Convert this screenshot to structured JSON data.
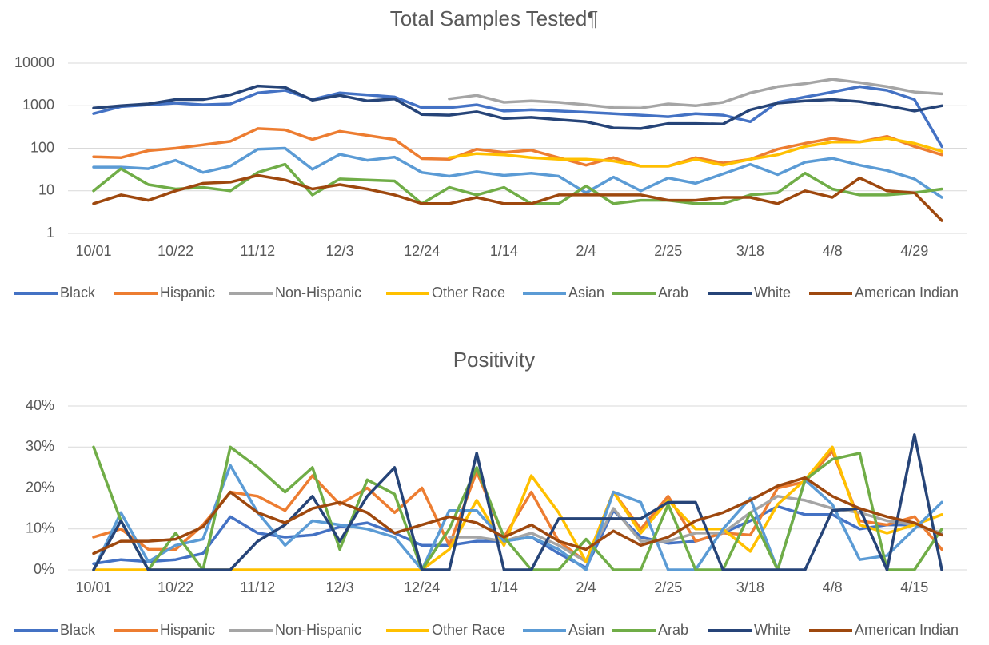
{
  "chart_data": [
    {
      "type": "line",
      "title": "Total Samples Tested¶",
      "log": true,
      "grid": true,
      "legend": "bottom",
      "categories": [
        "10/01",
        null,
        null,
        "10/22",
        null,
        null,
        "11/12",
        null,
        null,
        "12/3",
        null,
        null,
        "12/24",
        null,
        null,
        "1/14",
        null,
        null,
        "2/4",
        null,
        null,
        "2/25",
        null,
        null,
        "3/18",
        null,
        null,
        "4/8",
        null,
        null,
        "4/29",
        null
      ],
      "ylim": [
        1,
        10000
      ],
      "yticks": [
        1,
        10,
        100,
        1000,
        10000
      ],
      "series": [
        {
          "name": "Black",
          "color": "#4472c4",
          "values": [
            650,
            950,
            1050,
            1150,
            1050,
            1100,
            2000,
            2300,
            1400,
            2000,
            1800,
            1600,
            900,
            900,
            1050,
            750,
            800,
            750,
            700,
            650,
            600,
            550,
            650,
            600,
            420,
            1200,
            1600,
            2100,
            2800,
            2300,
            1400,
            110
          ]
        },
        {
          "name": "Hispanic",
          "color": "#ed7d31",
          "values": [
            63,
            60,
            88,
            100,
            120,
            145,
            290,
            270,
            160,
            250,
            200,
            160,
            57,
            55,
            95,
            80,
            90,
            60,
            40,
            60,
            38,
            38,
            60,
            45,
            55,
            95,
            130,
            170,
            140,
            190,
            110,
            70
          ]
        },
        {
          "name": "Non-Hispanic",
          "color": "#a5a5a5",
          "values": [
            null,
            null,
            null,
            null,
            null,
            null,
            null,
            null,
            null,
            null,
            null,
            null,
            null,
            1450,
            1750,
            1200,
            1300,
            1200,
            1050,
            900,
            880,
            1100,
            1000,
            1200,
            2000,
            2800,
            3300,
            4200,
            3500,
            2800,
            2100,
            1900
          ]
        },
        {
          "name": "Other Race",
          "color": "#ffc000",
          "values": [
            null,
            null,
            null,
            null,
            null,
            null,
            null,
            null,
            null,
            null,
            null,
            null,
            null,
            60,
            75,
            70,
            60,
            55,
            55,
            50,
            38,
            38,
            55,
            40,
            55,
            70,
            110,
            140,
            140,
            170,
            130,
            85
          ]
        },
        {
          "name": "Asian",
          "color": "#5b9bd5",
          "values": [
            36,
            36,
            33,
            52,
            27,
            38,
            95,
            100,
            32,
            72,
            52,
            62,
            27,
            22,
            28,
            23,
            26,
            22,
            9,
            21,
            10,
            20,
            15,
            25,
            42,
            24,
            47,
            58,
            40,
            30,
            19,
            7
          ]
        },
        {
          "name": "Arab",
          "color": "#70ad47",
          "values": [
            10,
            33,
            14,
            11,
            12,
            10,
            27,
            42,
            8,
            19,
            18,
            17,
            5,
            12,
            8,
            12,
            5,
            5,
            13,
            5,
            6,
            6,
            5,
            5,
            8,
            9,
            26,
            11,
            8,
            8,
            9,
            11
          ]
        },
        {
          "name": "White",
          "color": "#264478",
          "values": [
            880,
            1000,
            1100,
            1400,
            1400,
            1800,
            2900,
            2700,
            1350,
            1750,
            1300,
            1450,
            620,
            600,
            720,
            500,
            530,
            470,
            420,
            300,
            290,
            380,
            380,
            370,
            800,
            1150,
            1300,
            1400,
            1250,
            1000,
            750,
            1000
          ]
        },
        {
          "name": "American Indian",
          "color": "#9e480e",
          "values": [
            5,
            8,
            6,
            10,
            15,
            16,
            23,
            18,
            11,
            14,
            11,
            8,
            5,
            5,
            7,
            5,
            5,
            8,
            8,
            8,
            8,
            6,
            6,
            7,
            7,
            5,
            10,
            7,
            20,
            10,
            9,
            2
          ]
        }
      ]
    },
    {
      "type": "line",
      "title": "Positivity",
      "log": false,
      "grid": true,
      "legend": "bottom",
      "categories": [
        "10/01",
        null,
        null,
        "10/22",
        null,
        null,
        "11/12",
        null,
        null,
        "12/3",
        null,
        null,
        "12/24",
        null,
        null,
        "1/14",
        null,
        null,
        "2/4",
        null,
        null,
        "2/25",
        null,
        null,
        "3/18",
        null,
        null,
        "4/8",
        null,
        null,
        "4/15",
        null
      ],
      "ylim": [
        0,
        40
      ],
      "yticks": [
        {
          "value": 0,
          "label": "0%"
        },
        {
          "value": 10,
          "label": "10%"
        },
        {
          "value": 20,
          "label": "20%"
        },
        {
          "value": 30,
          "label": "30%"
        },
        {
          "value": 40,
          "label": "40%"
        }
      ],
      "series": [
        {
          "name": "Black",
          "color": "#4472c4",
          "values": [
            1.5,
            2.5,
            2,
            2.5,
            4,
            13,
            9,
            8,
            8.5,
            10.5,
            11.5,
            9,
            6,
            6,
            7,
            7,
            8,
            4,
            0.5,
            14.5,
            8,
            6.5,
            7,
            9,
            12,
            15.5,
            13.5,
            13.5,
            10,
            11,
            11,
            9
          ]
        },
        {
          "name": "Hispanic",
          "color": "#ed7d31",
          "values": [
            8,
            10,
            5,
            5,
            11,
            19,
            18,
            14.5,
            23,
            16,
            20,
            14,
            20,
            6,
            24,
            8,
            19,
            7,
            2,
            19,
            10,
            18,
            7,
            9,
            8.5,
            20,
            21.5,
            29,
            12,
            11,
            13,
            5
          ]
        },
        {
          "name": "Non-Hispanic",
          "color": "#a5a5a5",
          "values": [
            null,
            null,
            null,
            null,
            null,
            null,
            null,
            null,
            null,
            null,
            null,
            null,
            null,
            8,
            8,
            7,
            9,
            6,
            2,
            15,
            7,
            7,
            9,
            9,
            14,
            18,
            17,
            15,
            14,
            12,
            11,
            9
          ]
        },
        {
          "name": "Other Race",
          "color": "#ffc000",
          "values": [
            0,
            0,
            0,
            0,
            0,
            0,
            0,
            0,
            0,
            0,
            0,
            0,
            0,
            5,
            17,
            6,
            23,
            14,
            2,
            19,
            9,
            17,
            10,
            10,
            4.5,
            16,
            22,
            30,
            11,
            9,
            11,
            13.5
          ]
        },
        {
          "name": "Asian",
          "color": "#5b9bd5",
          "values": [
            0,
            14,
            2,
            6,
            7.5,
            25.5,
            14,
            6,
            12,
            11,
            10,
            8,
            0,
            14.5,
            14.5,
            7,
            8,
            5,
            0,
            19,
            16.5,
            0,
            0,
            10,
            17.5,
            0,
            22,
            16,
            2.5,
            3.5,
            10,
            16.5
          ]
        },
        {
          "name": "Arab",
          "color": "#70ad47",
          "values": [
            30,
            12,
            0,
            9,
            0,
            30,
            25,
            19,
            25,
            5,
            22,
            18.5,
            0,
            10,
            25,
            8,
            0,
            0,
            7.5,
            0,
            0,
            16,
            0,
            0,
            14,
            0,
            22,
            27,
            28.5,
            0,
            0,
            10
          ]
        },
        {
          "name": "White",
          "color": "#264478",
          "values": [
            0,
            12,
            0,
            0,
            0,
            0,
            7,
            11,
            18,
            7,
            18,
            25,
            0,
            0,
            28.5,
            0,
            0,
            12.5,
            12.5,
            12.5,
            12.5,
            16.5,
            16.5,
            0,
            0,
            0,
            0,
            14.5,
            15,
            0,
            33,
            0
          ]
        },
        {
          "name": "American Indian",
          "color": "#9e480e",
          "values": [
            4,
            7,
            7,
            7.5,
            10.5,
            19,
            14,
            11.5,
            15,
            16.5,
            14,
            9,
            11,
            13,
            11.5,
            8,
            11,
            7,
            5,
            9.5,
            6,
            8,
            12,
            14,
            17,
            20.5,
            22.5,
            18,
            15,
            13,
            11.5,
            8.5
          ]
        }
      ]
    }
  ]
}
